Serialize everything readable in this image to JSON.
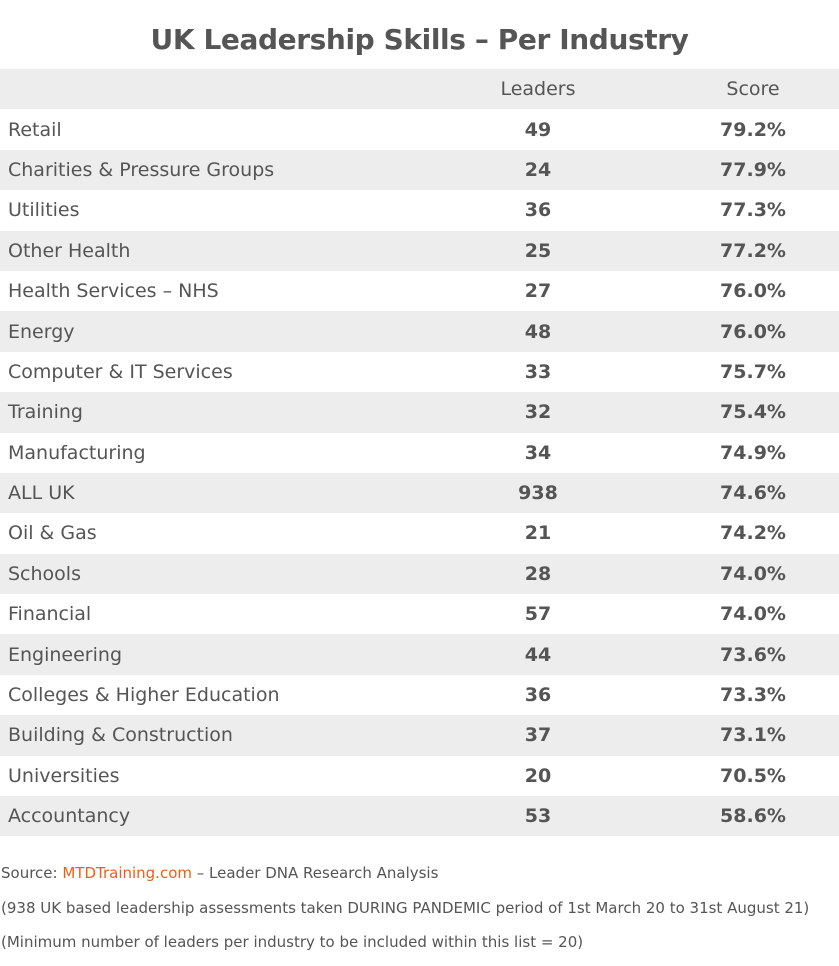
{
  "title": "UK Leadership Skills – Per Industry",
  "table": {
    "columns": [
      "",
      "Leaders",
      "Score"
    ],
    "rows": [
      {
        "industry": "Retail",
        "leaders": "49",
        "score": "79.2%"
      },
      {
        "industry": "Charities & Pressure Groups",
        "leaders": "24",
        "score": "77.9%"
      },
      {
        "industry": "Utilities",
        "leaders": "36",
        "score": "77.3%"
      },
      {
        "industry": "Other Health",
        "leaders": "25",
        "score": "77.2%"
      },
      {
        "industry": "Health Services – NHS",
        "leaders": "27",
        "score": "76.0%"
      },
      {
        "industry": "Energy",
        "leaders": "48",
        "score": "76.0%"
      },
      {
        "industry": "Computer & IT Services",
        "leaders": "33",
        "score": "75.7%"
      },
      {
        "industry": "Training",
        "leaders": "32",
        "score": "75.4%"
      },
      {
        "industry": "Manufacturing",
        "leaders": "34",
        "score": "74.9%"
      },
      {
        "industry": "ALL UK",
        "leaders": "938",
        "score": "74.6%"
      },
      {
        "industry": "Oil & Gas",
        "leaders": "21",
        "score": "74.2%"
      },
      {
        "industry": "Schools",
        "leaders": "28",
        "score": "74.0%"
      },
      {
        "industry": "Financial",
        "leaders": "57",
        "score": "74.0%"
      },
      {
        "industry": "Engineering",
        "leaders": "44",
        "score": "73.6%"
      },
      {
        "industry": "Colleges & Higher Education",
        "leaders": "36",
        "score": "73.3%"
      },
      {
        "industry": "Building & Construction",
        "leaders": "37",
        "score": "73.1%"
      },
      {
        "industry": "Universities",
        "leaders": "20",
        "score": "70.5%"
      },
      {
        "industry": "Accountancy",
        "leaders": "53",
        "score": "58.6%"
      }
    ]
  },
  "notes": {
    "source_prefix": "Source: ",
    "source_link": "MTDTraining.com",
    "source_suffix": " – Leader DNA Research Analysis",
    "line2": "(938 UK based leadership assessments taken DURING PANDEMIC period of 1st March 20 to 31st August 21)",
    "line3": "(Minimum number of leaders per industry to be included within this list = 20)"
  },
  "colors": {
    "text": "#555555",
    "row_shade": "#ededed",
    "link": "#e8601c"
  }
}
